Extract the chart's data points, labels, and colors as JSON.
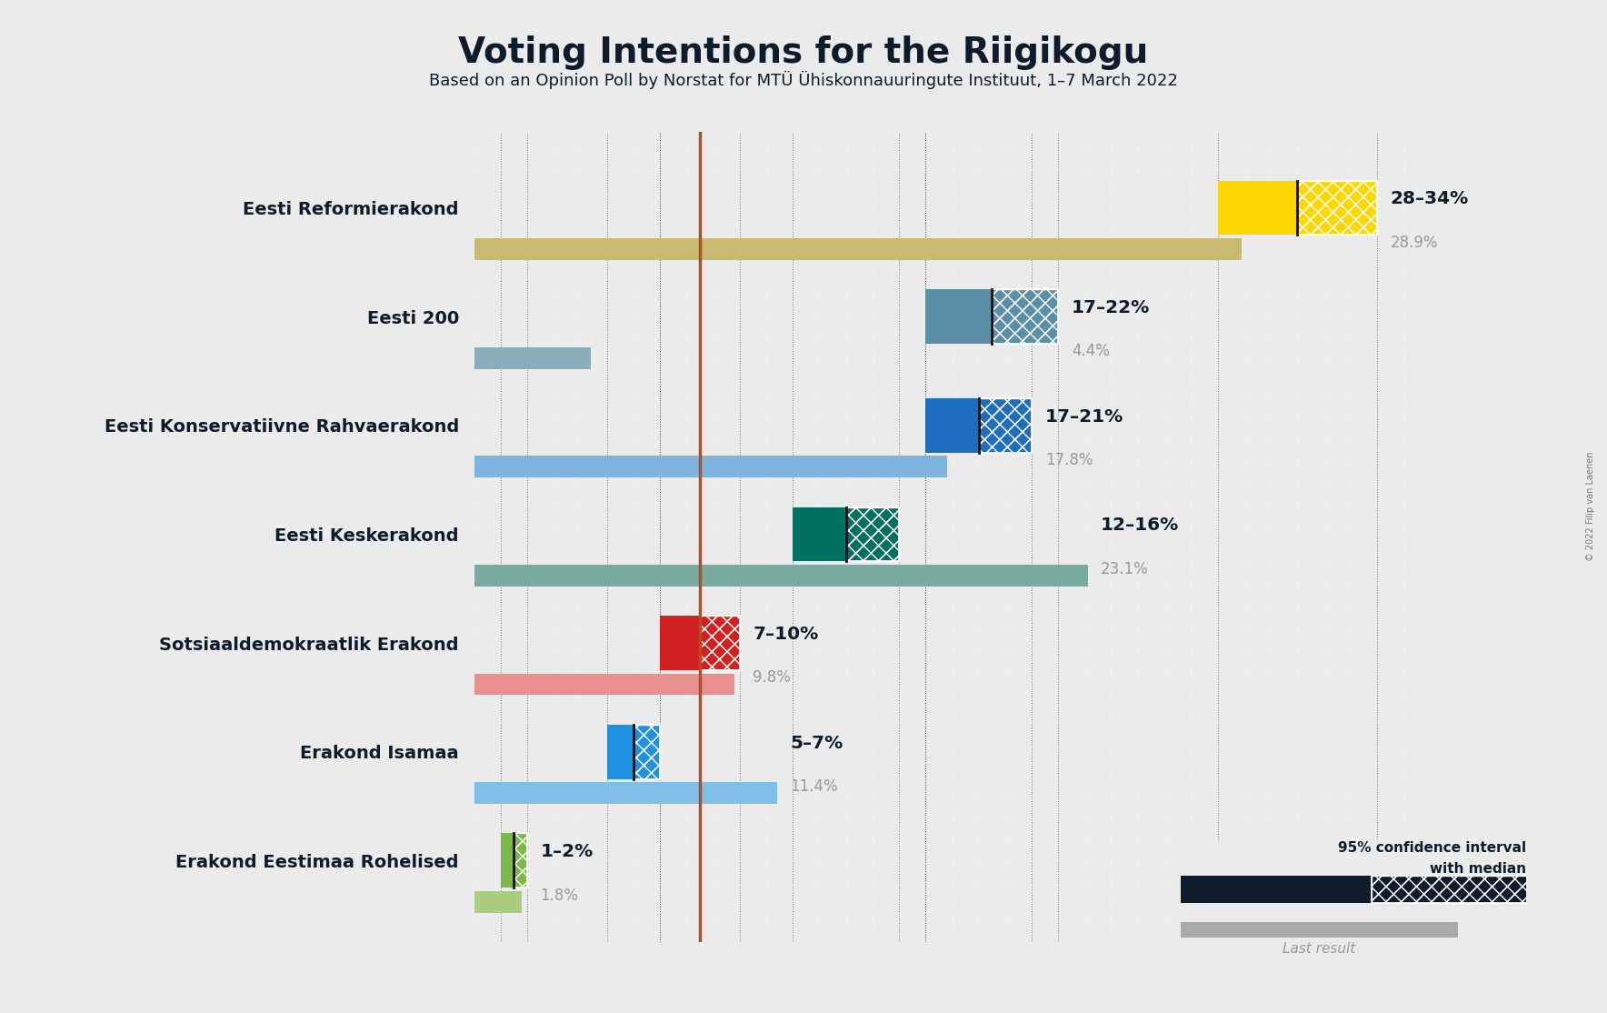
{
  "title": "Voting Intentions for the Riigikogu",
  "subtitle": "Based on an Opinion Poll by Norstat for MTÜ Ühiskonnauuringute Instituut, 1–7 March 2022",
  "copyright": "© 2022 Filip van Laenen",
  "parties": [
    {
      "name": "Eesti Reformierakond",
      "ci_low": 28,
      "ci_high": 34,
      "median": 31,
      "last_result": 28.9,
      "label": "28–34%",
      "last_label": "28.9%",
      "color": "#FFD700",
      "last_color": "#C8BA70"
    },
    {
      "name": "Eesti 200",
      "ci_low": 17,
      "ci_high": 22,
      "median": 19.5,
      "last_result": 4.4,
      "label": "17–22%",
      "last_label": "4.4%",
      "color": "#5B8FA8",
      "last_color": "#8BADB8"
    },
    {
      "name": "Eesti Konservatiivne Rahvaerakond",
      "ci_low": 17,
      "ci_high": 21,
      "median": 19,
      "last_result": 17.8,
      "label": "17–21%",
      "last_label": "17.8%",
      "color": "#1E6EBF",
      "last_color": "#7EB4E0"
    },
    {
      "name": "Eesti Keskerakond",
      "ci_low": 12,
      "ci_high": 16,
      "median": 14,
      "last_result": 23.1,
      "label": "12–16%",
      "last_label": "23.1%",
      "color": "#007060",
      "last_color": "#7AABA0"
    },
    {
      "name": "Sotsiaaldemokraatlik Erakond",
      "ci_low": 7,
      "ci_high": 10,
      "median": 8.5,
      "last_result": 9.8,
      "label": "7–10%",
      "last_label": "9.8%",
      "color": "#D32020",
      "last_color": "#E89090"
    },
    {
      "name": "Erakond Isamaa",
      "ci_low": 5,
      "ci_high": 7,
      "median": 6,
      "last_result": 11.4,
      "label": "5–7%",
      "last_label": "11.4%",
      "color": "#2090E0",
      "last_color": "#80C0E8"
    },
    {
      "name": "Erakond Eestimaa Rohelised",
      "ci_low": 1,
      "ci_high": 2,
      "median": 1.5,
      "last_result": 1.8,
      "label": "1–2%",
      "last_label": "1.8%",
      "color": "#7DB84A",
      "last_color": "#AACE80"
    }
  ],
  "xmax": 36,
  "bg_color": "#EBEBEB",
  "bar_height": 0.5,
  "last_bar_height": 0.2,
  "ref_line_x": 8.5,
  "ref_line_color": "#B05020",
  "label_color": "#0D1B2A",
  "last_label_color": "#999999",
  "legend_ci_color": "#0D1B2A",
  "legend_last_color": "#AAAAAA",
  "dot_grid_color": "#FFFFFF"
}
